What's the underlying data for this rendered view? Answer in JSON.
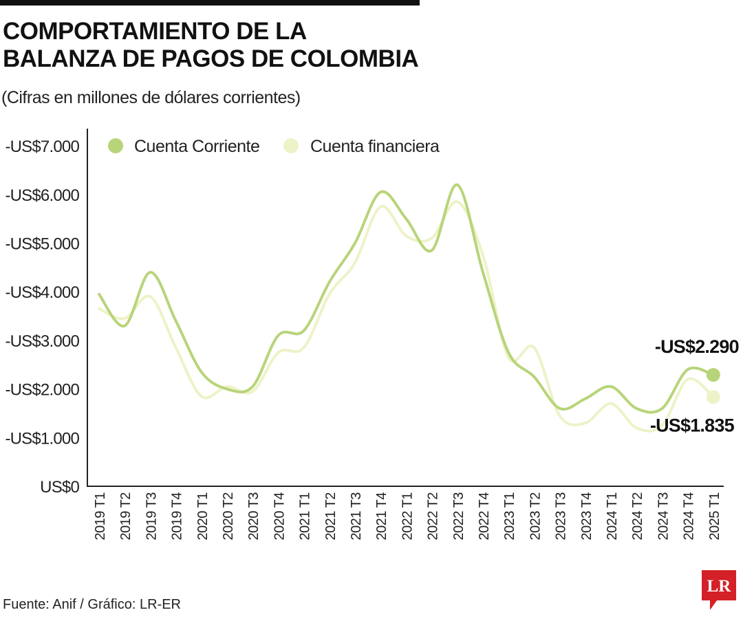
{
  "header": {
    "title_line1": "COMPORTAMIENTO DE LA",
    "title_line2": "BALANZA DE PAGOS DE COLOMBIA",
    "subtitle": "(Cifras en millones de dólares corrientes)"
  },
  "footer": {
    "source": "Fuente: Anif / Gráfico: LR-ER",
    "logo_text": "LR"
  },
  "colors": {
    "cuenta_corriente": "#b8d47a",
    "cuenta_financiera": "#eef2c8",
    "axis": "#222222",
    "logo": "#d42027"
  },
  "chart_data": {
    "type": "line",
    "title": "COMPORTAMIENTO DE LA BALANZA DE PAGOS DE COLOMBIA",
    "subtitle": "(Cifras en millones de dólares corrientes)",
    "xlabel": "",
    "ylabel": "",
    "grid": false,
    "legend_position": "top-left",
    "y_range": [
      0,
      7000
    ],
    "y_ticks": [
      0,
      1000,
      2000,
      3000,
      4000,
      5000,
      6000,
      7000
    ],
    "y_tick_labels": [
      "US$0",
      "-US$1.000",
      "-US$2.000",
      "-US$3.000",
      "-US$4.000",
      "-US$5.000",
      "-US$6.000",
      "-US$7.000"
    ],
    "categories": [
      "2019 T1",
      "2019 T2",
      "2019 T3",
      "2019 T4",
      "2020 T1",
      "2020 T2",
      "2020 T3",
      "2020 T4",
      "2021 T1",
      "2021 T2",
      "2021 T3",
      "2021 T4",
      "2022 T1",
      "2022 T2",
      "2022 T3",
      "2022 T4",
      "2023 T1",
      "2023 T2",
      "2023 T3",
      "2023 T4",
      "2024 T1",
      "2024 T2",
      "2024 T3",
      "2024 T4",
      "2025 T1"
    ],
    "series": [
      {
        "name": "Cuenta Corriente",
        "values": [
          3950,
          3300,
          4400,
          3400,
          2350,
          2000,
          2050,
          3100,
          3200,
          4200,
          5000,
          6050,
          5500,
          4850,
          6200,
          4400,
          2750,
          2250,
          1600,
          1800,
          2050,
          1600,
          1600,
          2400,
          2290
        ]
      },
      {
        "name": "Cuenta financiera",
        "values": [
          3650,
          3450,
          3900,
          2850,
          1850,
          2050,
          1950,
          2750,
          2850,
          3950,
          4600,
          5750,
          5150,
          5100,
          5850,
          4750,
          2650,
          2850,
          1450,
          1300,
          1700,
          1200,
          1250,
          2200,
          1835
        ]
      }
    ],
    "annotations": [
      {
        "series": "Cuenta Corriente",
        "category": "2025 T1",
        "label": "-US$2.290"
      },
      {
        "series": "Cuenta financiera",
        "category": "2025 T1",
        "label": "-US$1.835"
      }
    ]
  }
}
